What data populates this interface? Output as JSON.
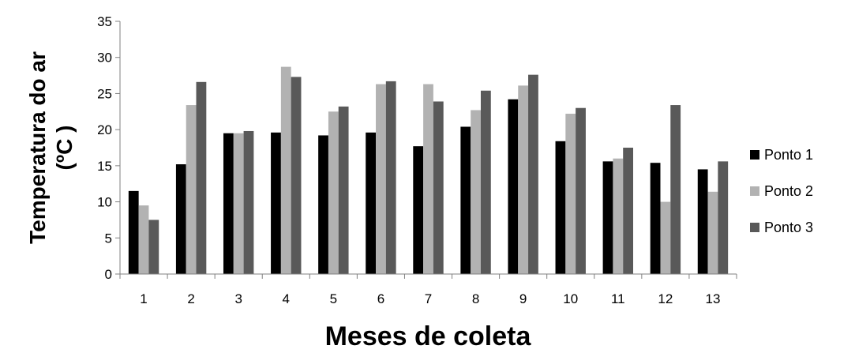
{
  "chart_data": {
    "type": "bar",
    "xlabel": "Meses de coleta",
    "ylabel": "Temperatura do ar (ºC )",
    "ylabel_lines": [
      "Temperatura do ar",
      "(ºC )"
    ],
    "ylim": [
      0,
      35
    ],
    "yticks": [
      0,
      5,
      10,
      15,
      20,
      25,
      30,
      35
    ],
    "grid": false,
    "legend_position": "right",
    "categories": [
      "1",
      "2",
      "3",
      "4",
      "5",
      "6",
      "7",
      "8",
      "9",
      "10",
      "11",
      "12",
      "13"
    ],
    "series": [
      {
        "name": "Ponto 1",
        "color": "#000000",
        "values": [
          11.5,
          15.2,
          19.5,
          19.6,
          19.2,
          19.6,
          17.7,
          20.4,
          24.2,
          18.4,
          15.6,
          15.4,
          14.5
        ]
      },
      {
        "name": "Ponto 2",
        "color": "#b2b2b2",
        "values": [
          9.5,
          23.4,
          19.5,
          28.7,
          22.5,
          26.3,
          26.3,
          22.7,
          26.1,
          22.2,
          16.0,
          10.0,
          11.4
        ]
      },
      {
        "name": "Ponto 3",
        "color": "#595959",
        "values": [
          7.5,
          26.6,
          19.8,
          27.3,
          23.2,
          26.7,
          23.9,
          25.4,
          27.6,
          23.0,
          17.5,
          23.4,
          15.6
        ]
      }
    ]
  }
}
